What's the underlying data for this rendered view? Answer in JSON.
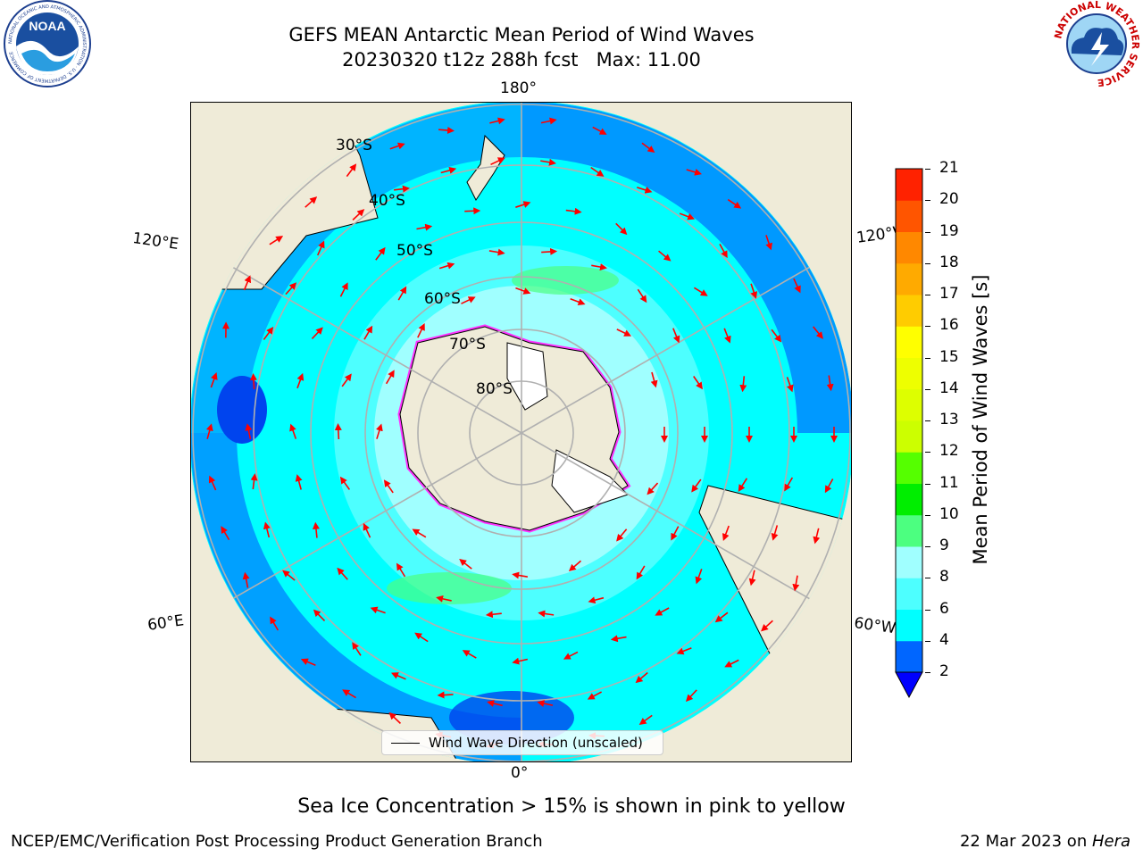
{
  "header": {
    "title_line1": "GEFS MEAN Antarctic Mean Period of Wind Waves",
    "title_line2": "20230320 t12z 288h fcst   Max: 11.00"
  },
  "logos": {
    "noaa": {
      "text": "NOAA",
      "ring_text": "NATIONAL OCEANIC AND ATMOSPHERIC ADMINISTRATION · U.S. DEPARTMENT OF COMMERCE"
    },
    "nws": {
      "ring_text": "NATIONAL WEATHER SERVICE"
    }
  },
  "map": {
    "projection": "south-polar-stereographic",
    "longitude_labels": {
      "top": "180°",
      "bottom": "0°",
      "upper_left": "120°E",
      "upper_right": "120°W",
      "lower_left": "60°E",
      "lower_right": "60°W"
    },
    "latitude_labels": [
      "30°S",
      "40°S",
      "50°S",
      "60°S",
      "70°S",
      "80°S"
    ],
    "legend_text": "Wind Wave Direction (unscaled)",
    "colors": {
      "land": "#efebd8",
      "coast": "#000000",
      "grid": "#b0b0b0",
      "arrow": "#ff0000",
      "ice_edge": "#ff33ff"
    }
  },
  "colorbar": {
    "title": "Mean Period of Wind Waves [s]",
    "ticks": [
      "2",
      "4",
      "6",
      "8",
      "9",
      "10",
      "11",
      "12",
      "13",
      "14",
      "15",
      "16",
      "17",
      "18",
      "19",
      "20",
      "21"
    ],
    "colors": [
      "#0066ff",
      "#00ffff",
      "#4dffff",
      "#a0ffff",
      "#4cff80",
      "#00ee00",
      "#55ff00",
      "#ccff00",
      "#ddff00",
      "#eeff00",
      "#ffff00",
      "#ffcc00",
      "#ffaa00",
      "#ff8800",
      "#ff5500",
      "#ff2200",
      "#ff0000"
    ],
    "extend_color": "#0000ff"
  },
  "footer": {
    "note": "Sea Ice Concentration > 15% is shown in pink to yellow",
    "org": "NCEP/EMC/Verification Post Processing Product Generation Branch",
    "date": "22 Mar 2023 on ",
    "machine": "Hera"
  }
}
